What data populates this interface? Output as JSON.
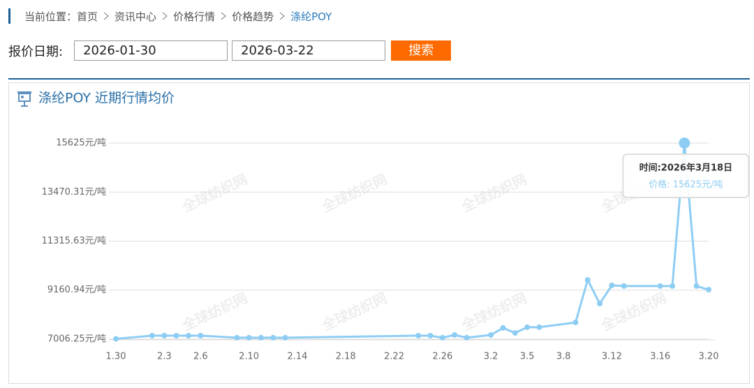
{
  "breadcrumb": {
    "label": "当前位置：",
    "items": [
      "首页",
      "资讯中心",
      "价格行情",
      "价格趋势",
      "涤纶POY"
    ]
  },
  "form": {
    "label": "报价日期:",
    "start_date": "2026-01-30",
    "end_date": "2026-03-22",
    "button": "搜索"
  },
  "chart_data": {
    "type": "line",
    "title": "涤纶POY 近期行情均价",
    "watermark": "全球纺织网",
    "categories": [
      "1.30",
      null,
      null,
      null,
      "2.3",
      null,
      null,
      "2.6",
      null,
      null,
      null,
      "2.10",
      null,
      null,
      null,
      "2.14",
      null,
      null,
      null,
      "2.18",
      null,
      null,
      null,
      "2.22",
      null,
      null,
      null,
      "2.26",
      null,
      null,
      null,
      "3.2",
      null,
      null,
      "3.5",
      null,
      null,
      "3.8",
      null,
      null,
      null,
      "3.12",
      null,
      null,
      null,
      "3.16",
      null,
      null,
      null,
      "3.20"
    ],
    "series": [
      {
        "color": "#8ecdf3",
        "values": [
          7020,
          null,
          null,
          7160,
          7160,
          7160,
          7160,
          7160,
          null,
          null,
          7070,
          7070,
          7070,
          7070,
          7070,
          null,
          null,
          null,
          null,
          null,
          null,
          null,
          null,
          null,
          null,
          7160,
          7160,
          7070,
          7190,
          7070,
          null,
          7190,
          7500,
          7280,
          7530,
          7530,
          null,
          null,
          7740,
          9610,
          8570,
          9370,
          9340,
          null,
          null,
          9340,
          9340,
          15625,
          9340,
          9180
        ]
      }
    ],
    "connect_nulls": true,
    "ylim": [
      7006.25,
      15625
    ],
    "yticks": [
      {
        "value": 7006.25,
        "label": "7006.25元/吨"
      },
      {
        "value": 9160.94,
        "label": "9160.94元/吨"
      },
      {
        "value": 11315.63,
        "label": "11315.63元/吨"
      },
      {
        "value": 13470.31,
        "label": "13470.31元/吨"
      },
      {
        "value": 15625,
        "label": "15625元/吨"
      }
    ],
    "grid": true,
    "tooltip": {
      "index": 47,
      "time": "时间:2026年3月18日",
      "price": "价格: 15625元/吨"
    }
  }
}
